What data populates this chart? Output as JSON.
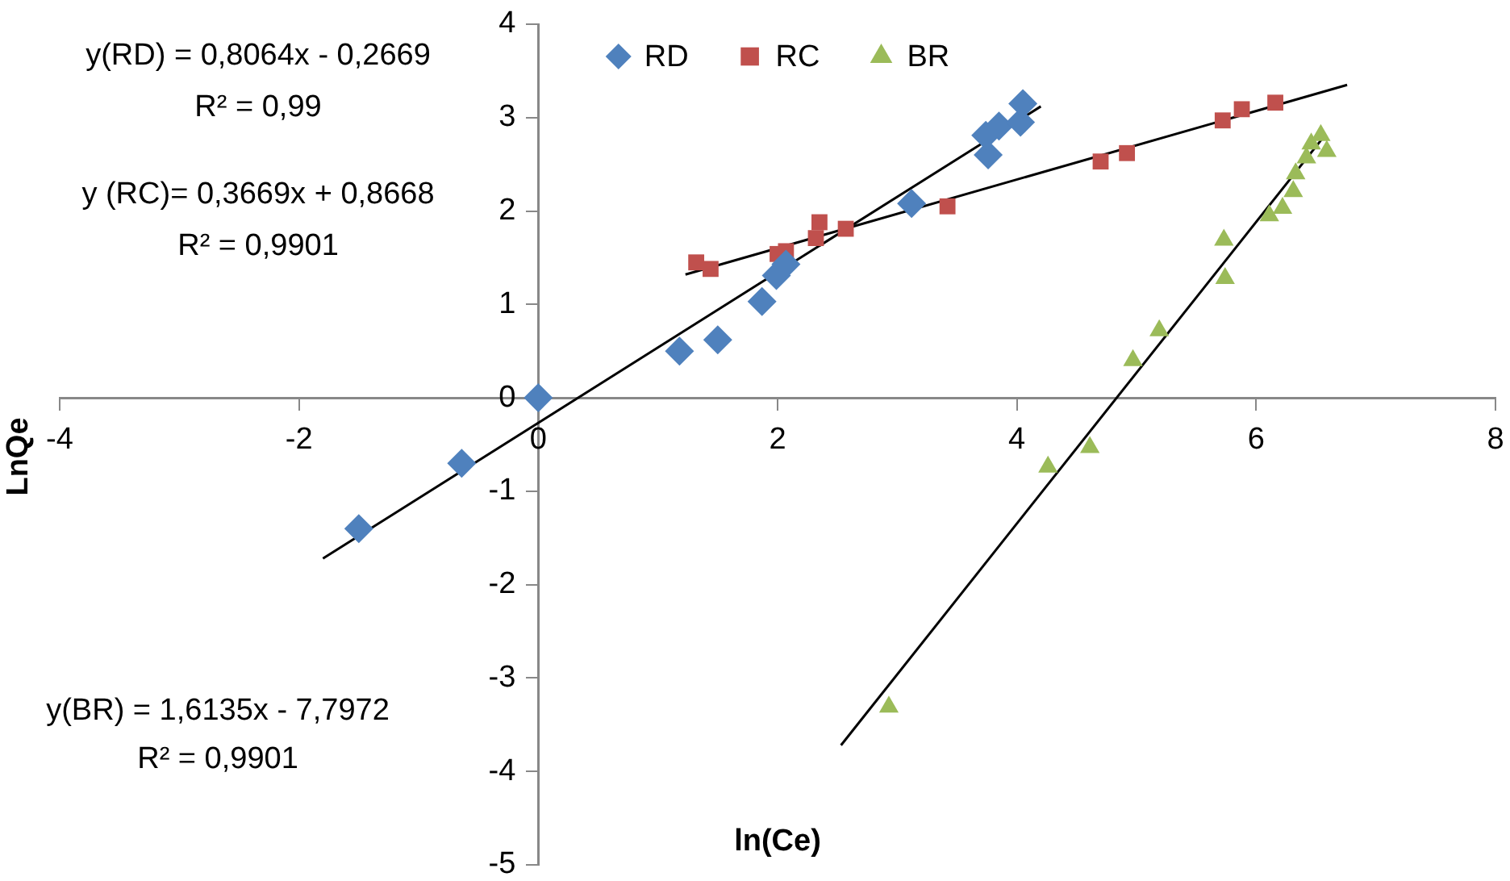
{
  "chart_data": {
    "type": "scatter",
    "xlabel": "ln(Ce)",
    "ylabel": "LnQe",
    "xlim": [
      -4,
      8
    ],
    "xticks": [
      -4,
      -2,
      0,
      2,
      4,
      6,
      8
    ],
    "ylim": [
      -5,
      4
    ],
    "yticks": [
      -5,
      -4,
      -3,
      -2,
      -1,
      0,
      1,
      2,
      3,
      4
    ],
    "grid": false,
    "legend": "top",
    "annotations": [
      "y(RD) = 0,8064x - 0,2669\nR² = 0,99",
      "y (RC)= 0,3669x + 0,8668\nR² = 0,9901",
      "y(BR) = 1,6135x - 7,7972\nR² = 0,9901"
    ],
    "series": [
      {
        "name": "RD",
        "color": "#4f81bd",
        "marker": "diamond",
        "x": [
          -1.5,
          -0.64,
          0,
          1.18,
          1.5,
          1.87,
          1.99,
          2.07,
          3.12,
          3.76,
          3.74,
          3.85,
          4.03,
          4.05
        ],
        "values": [
          -1.4,
          -0.7,
          0,
          0.5,
          0.62,
          1.03,
          1.31,
          1.43,
          2.08,
          2.6,
          2.81,
          2.91,
          2.95,
          3.15
        ]
      },
      {
        "name": "RC",
        "color": "#c0504d",
        "marker": "square",
        "x": [
          1.32,
          1.44,
          2.0,
          2.07,
          2.32,
          2.35,
          2.57,
          3.42,
          4.7,
          4.92,
          5.72,
          5.88,
          6.16
        ],
        "values": [
          1.45,
          1.38,
          1.54,
          1.57,
          1.71,
          1.88,
          1.81,
          2.05,
          2.53,
          2.62,
          2.97,
          3.09,
          3.16
        ]
      },
      {
        "name": "BR",
        "color": "#9bbb59",
        "marker": "triangle",
        "x": [
          2.93,
          4.26,
          4.61,
          4.97,
          5.19,
          5.73,
          5.74,
          6.11,
          6.22,
          6.31,
          6.33,
          6.42,
          6.46,
          6.54,
          6.59
        ],
        "values": [
          -3.31,
          -0.74,
          -0.53,
          0.4,
          0.72,
          1.69,
          1.28,
          1.95,
          2.03,
          2.21,
          2.4,
          2.57,
          2.72,
          2.81,
          2.64
        ]
      },
      {
        "type": "line",
        "color": "#000000",
        "marker": "none",
        "x": [
          -1.8,
          4.2
        ],
        "values": [
          -1.72,
          3.12
        ]
      },
      {
        "type": "line",
        "color": "#000000",
        "marker": "none",
        "x": [
          1.23,
          6.76
        ],
        "values": [
          1.32,
          3.35
        ]
      },
      {
        "type": "line",
        "color": "#000000",
        "marker": "none",
        "x": [
          2.53,
          6.58
        ],
        "values": [
          -3.72,
          2.82
        ]
      }
    ]
  }
}
